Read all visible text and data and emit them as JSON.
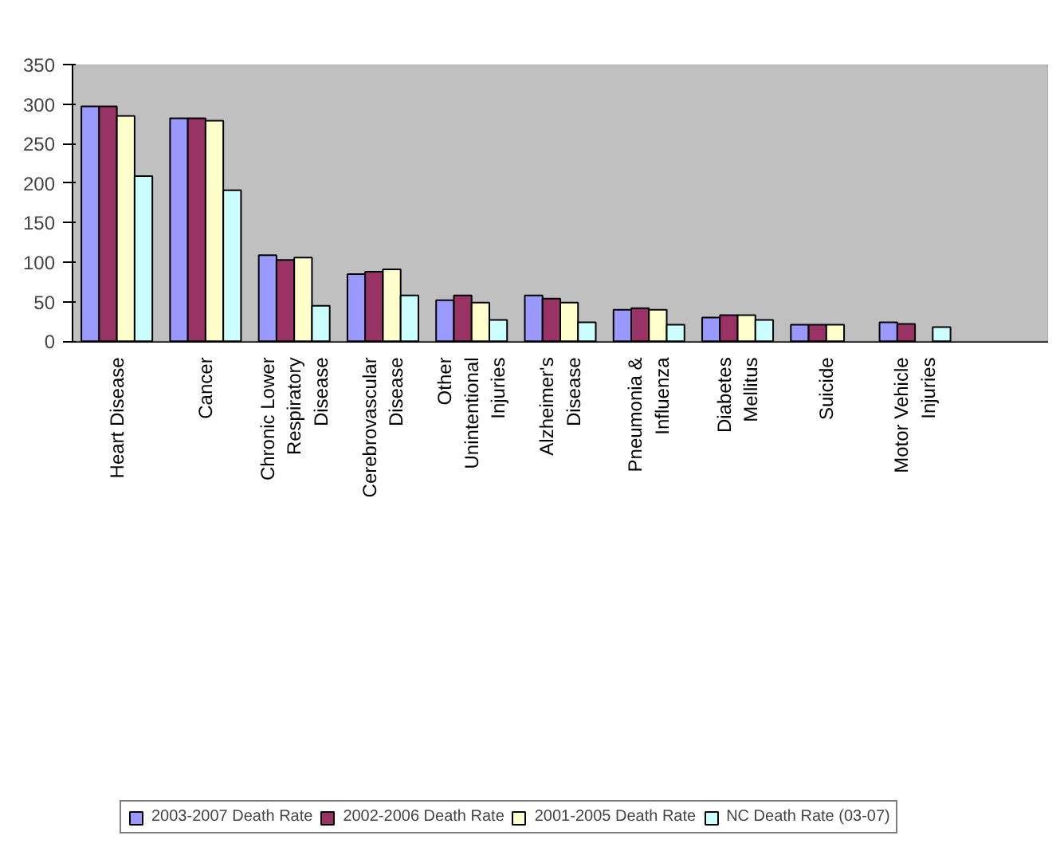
{
  "chart_data": {
    "type": "bar",
    "categories": [
      "Heart Disease",
      "Cancer",
      "Chronic Lower Respiratory Disease",
      "Cerebrovascular Disease",
      "Other Unintentional Injuries",
      "Alzheimer's Disease",
      "Pneumonia & Influenza",
      "Diabetes Mellitus",
      "Suicide",
      "Motor Vehicle Injuries",
      null
    ],
    "series": [
      {
        "name": "2003-2007 Death Rate",
        "color": "#9999ff",
        "values": [
          297,
          282,
          109,
          85,
          52,
          58,
          40,
          30,
          21,
          24,
          null
        ]
      },
      {
        "name": "2002-2006 Death Rate",
        "color": "#993366",
        "values": [
          297,
          282,
          103,
          88,
          58,
          54,
          42,
          33,
          21,
          22,
          null
        ]
      },
      {
        "name": "2001-2005 Death Rate",
        "color": "#ffffcc",
        "values": [
          285,
          279,
          106,
          91,
          49,
          49,
          40,
          33,
          21,
          null,
          null
        ]
      },
      {
        "name": "NC Death Rate (03-07)",
        "color": "#ccffff",
        "values": [
          209,
          191,
          45,
          58,
          27,
          24,
          21,
          27,
          null,
          18,
          null
        ]
      }
    ],
    "ylim": [
      0,
      350
    ],
    "yticks": [
      0,
      50,
      100,
      150,
      200,
      250,
      300,
      350
    ],
    "grid": "y",
    "legend": "bottom"
  }
}
